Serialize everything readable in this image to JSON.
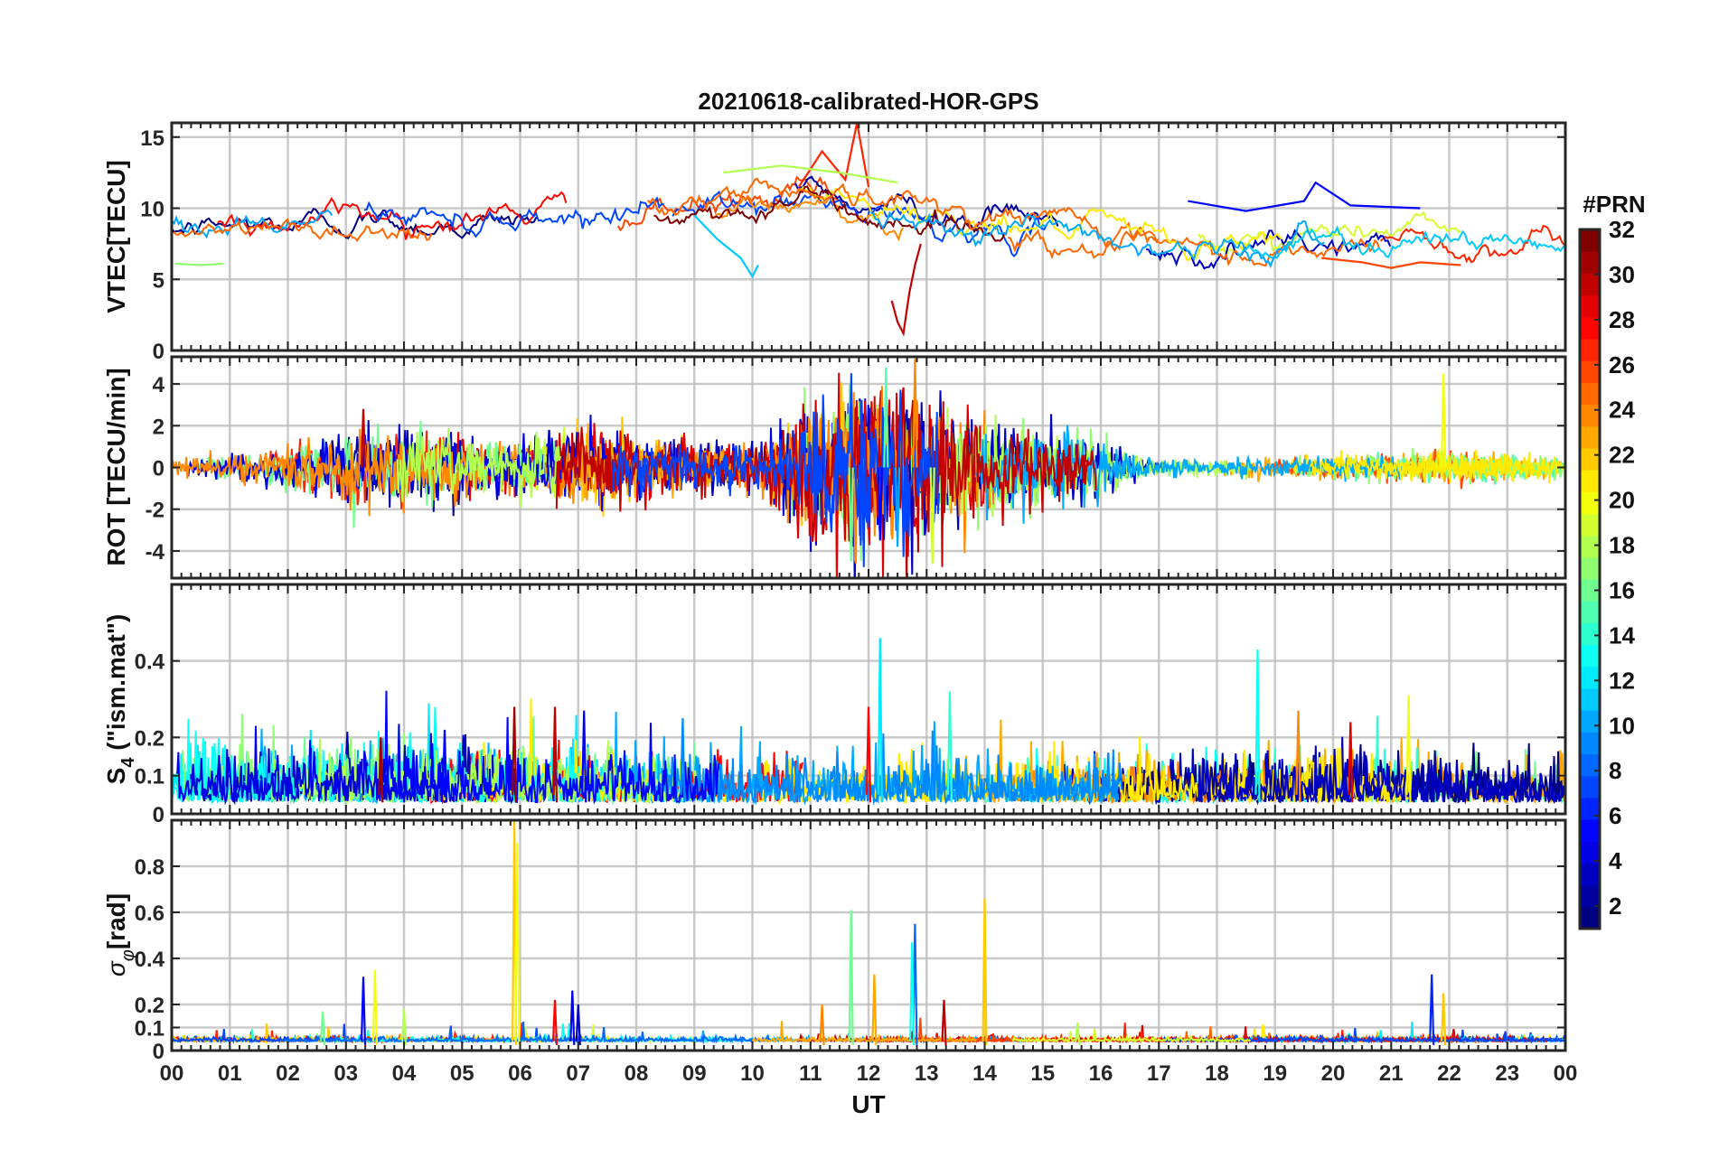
{
  "chart_data": {
    "type": "line",
    "title": "20210618-calibrated-HOR-GPS",
    "xlabel": "UT",
    "x_range_hours": [
      0,
      24
    ],
    "x_tick_labels": [
      "00",
      "01",
      "02",
      "03",
      "04",
      "05",
      "06",
      "07",
      "08",
      "09",
      "10",
      "11",
      "12",
      "13",
      "14",
      "15",
      "16",
      "17",
      "18",
      "19",
      "20",
      "21",
      "22",
      "23",
      "00"
    ],
    "colorbar": {
      "title": "#PRN",
      "range": [
        1,
        32
      ],
      "tick_labels": [
        "2",
        "4",
        "6",
        "8",
        "10",
        "12",
        "14",
        "16",
        "18",
        "20",
        "22",
        "24",
        "26",
        "28",
        "30",
        "32"
      ],
      "tick_values": [
        2,
        4,
        6,
        8,
        10,
        12,
        14,
        16,
        18,
        20,
        22,
        24,
        26,
        28,
        30,
        32
      ]
    },
    "panels": [
      {
        "id": "vtec",
        "ylabel": "VTEC[TECU]",
        "ylim": [
          0,
          16
        ],
        "yticks": [
          0,
          5,
          10,
          15
        ],
        "ytick_labels": [
          "0",
          "5",
          "10",
          "15"
        ],
        "baseline_profile": [
          [
            0,
            8.3
          ],
          [
            2,
            8.6
          ],
          [
            3,
            9.0
          ],
          [
            5,
            8.8
          ],
          [
            7,
            9.2
          ],
          [
            9,
            10.0
          ],
          [
            11,
            11.0
          ],
          [
            12,
            10.0
          ],
          [
            13,
            9.5
          ],
          [
            14,
            9.0
          ],
          [
            15,
            8.5
          ],
          [
            16,
            8.0
          ],
          [
            17,
            7.3
          ],
          [
            18,
            7.0
          ],
          [
            19,
            7.2
          ],
          [
            20,
            7.6
          ],
          [
            22,
            7.8
          ],
          [
            24,
            7.4
          ]
        ],
        "noise": 0.55,
        "features": [
          {
            "prn": 30,
            "points": [
              [
                12.4,
                3.5
              ],
              [
                12.5,
                2.0
              ],
              [
                12.6,
                1.2
              ],
              [
                12.7,
                4.0
              ],
              [
                12.8,
                6.0
              ],
              [
                12.9,
                7.5
              ]
            ],
            "note": "depletion"
          },
          {
            "prn": 11,
            "points": [
              [
                9.0,
                9.5
              ],
              [
                9.4,
                7.8
              ],
              [
                9.8,
                6.5
              ],
              [
                10.0,
                5.2
              ],
              [
                10.1,
                6.0
              ]
            ]
          },
          {
            "prn": 5,
            "points": [
              [
                17.5,
                10.5
              ],
              [
                18.5,
                9.8
              ],
              [
                19.5,
                10.5
              ],
              [
                19.7,
                11.8
              ],
              [
                20.3,
                10.2
              ],
              [
                21.5,
                10.0
              ]
            ]
          },
          {
            "prn": 26,
            "points": [
              [
                19.8,
                6.5
              ],
              [
                20.5,
                6.2
              ],
              [
                21.0,
                5.8
              ],
              [
                21.5,
                6.2
              ],
              [
                22.2,
                6.0
              ]
            ]
          },
          {
            "prn": 27,
            "points": [
              [
                10.8,
                11.5
              ],
              [
                11.2,
                14.0
              ],
              [
                11.6,
                12.0
              ],
              [
                11.8,
                16.0
              ],
              [
                12.0,
                11.5
              ]
            ]
          },
          {
            "prn": 18,
            "points": [
              [
                9.5,
                12.5
              ],
              [
                10.5,
                13.0
              ],
              [
                11.5,
                12.5
              ],
              [
                12.5,
                11.8
              ]
            ]
          },
          {
            "prn": 17,
            "points": [
              [
                0.05,
                6.1
              ],
              [
                0.5,
                6.0
              ],
              [
                0.9,
                6.1
              ]
            ]
          }
        ]
      },
      {
        "id": "rot",
        "ylabel": "ROT [TECU/min]",
        "ylim": [
          -5.3,
          5.3
        ],
        "yticks": [
          -4,
          -2,
          0,
          2,
          4
        ],
        "ytick_labels": [
          "-4",
          "-2",
          "0",
          "2",
          "4"
        ],
        "activity_profile": [
          [
            0,
            0.2
          ],
          [
            2,
            0.5
          ],
          [
            3,
            0.9
          ],
          [
            4.5,
            0.8
          ],
          [
            6,
            0.6
          ],
          [
            7,
            0.9
          ],
          [
            8,
            0.7
          ],
          [
            10,
            0.5
          ],
          [
            11,
            1.6
          ],
          [
            12,
            2.2
          ],
          [
            13,
            1.8
          ],
          [
            14,
            1.2
          ],
          [
            15,
            1.0
          ],
          [
            16,
            0.7
          ],
          [
            17,
            0.2
          ],
          [
            19,
            0.25
          ],
          [
            21,
            0.3
          ],
          [
            22,
            0.4
          ],
          [
            24,
            0.25
          ]
        ],
        "spikes": [
          [
            11.7,
            -4.5,
            16
          ],
          [
            12.3,
            4.8,
            15
          ],
          [
            12.5,
            -3.8,
            10
          ],
          [
            12.8,
            5.2,
            24
          ],
          [
            13.1,
            -4.6,
            19
          ],
          [
            12.2,
            -3.5,
            5
          ],
          [
            21.9,
            4.5,
            20
          ],
          [
            3.3,
            2.8,
            30
          ],
          [
            6.5,
            1.8,
            3
          ]
        ]
      },
      {
        "id": "s4",
        "ylabel": "S4 (\"ism.mat\")",
        "ylabel_base": "S",
        "ylabel_sub": "4",
        "ylabel_rest": " (\"ism.mat\")",
        "ylim": [
          0,
          0.6
        ],
        "yticks": [
          0,
          0.1,
          0.2,
          0.4
        ],
        "ytick_labels": [
          "0",
          "0.1",
          "0.2",
          "0.4"
        ],
        "activity_profile": [
          [
            0,
            0.12
          ],
          [
            3,
            0.13
          ],
          [
            5,
            0.14
          ],
          [
            7,
            0.13
          ],
          [
            9,
            0.11
          ],
          [
            11,
            0.1
          ],
          [
            12,
            0.12
          ],
          [
            13,
            0.11
          ],
          [
            15,
            0.1
          ],
          [
            17,
            0.1
          ],
          [
            19,
            0.12
          ],
          [
            21,
            0.12
          ],
          [
            24,
            0.09
          ]
        ],
        "spikes": [
          [
            12.2,
            0.46,
            12
          ],
          [
            18.7,
            0.43,
            13
          ],
          [
            13.4,
            0.32,
            14
          ],
          [
            21.3,
            0.31,
            20
          ],
          [
            4.7,
            0.22,
            5
          ],
          [
            6.6,
            0.28,
            30
          ],
          [
            19.4,
            0.27,
            24
          ],
          [
            20.3,
            0.24,
            29
          ],
          [
            12.0,
            0.28,
            28
          ],
          [
            3.6,
            0.2,
            31
          ],
          [
            5.9,
            0.28,
            31
          ],
          [
            7.1,
            0.27,
            5
          ],
          [
            8.8,
            0.25,
            9
          ]
        ]
      },
      {
        "id": "sigma_phi",
        "ylabel": "σφ[rad]",
        "ylabel_base": "σ",
        "ylabel_sub": "φ",
        "ylabel_rest": "[rad]",
        "ylim": [
          0,
          1.0
        ],
        "yticks": [
          0,
          0.1,
          0.2,
          0.4,
          0.6,
          0.8
        ],
        "ytick_labels": [
          "0",
          "0.1",
          "0.2",
          "0.4",
          "0.6",
          "0.8"
        ],
        "baseline": 0.04,
        "spikes": [
          [
            5.9,
            1.0,
            22
          ],
          [
            5.95,
            0.9,
            20
          ],
          [
            14.0,
            0.66,
            22
          ],
          [
            11.7,
            0.61,
            16
          ],
          [
            12.8,
            0.55,
            8
          ],
          [
            12.75,
            0.47,
            13
          ],
          [
            3.3,
            0.32,
            5
          ],
          [
            3.5,
            0.35,
            20
          ],
          [
            6.6,
            0.22,
            28
          ],
          [
            6.9,
            0.26,
            4
          ],
          [
            7.0,
            0.2,
            3
          ],
          [
            21.7,
            0.33,
            6
          ],
          [
            21.9,
            0.25,
            22
          ],
          [
            12.1,
            0.33,
            23
          ],
          [
            11.2,
            0.2,
            24
          ],
          [
            13.3,
            0.22,
            30
          ],
          [
            15.6,
            0.12,
            18
          ],
          [
            2.6,
            0.17,
            16
          ],
          [
            4.0,
            0.18,
            18
          ]
        ]
      }
    ]
  }
}
